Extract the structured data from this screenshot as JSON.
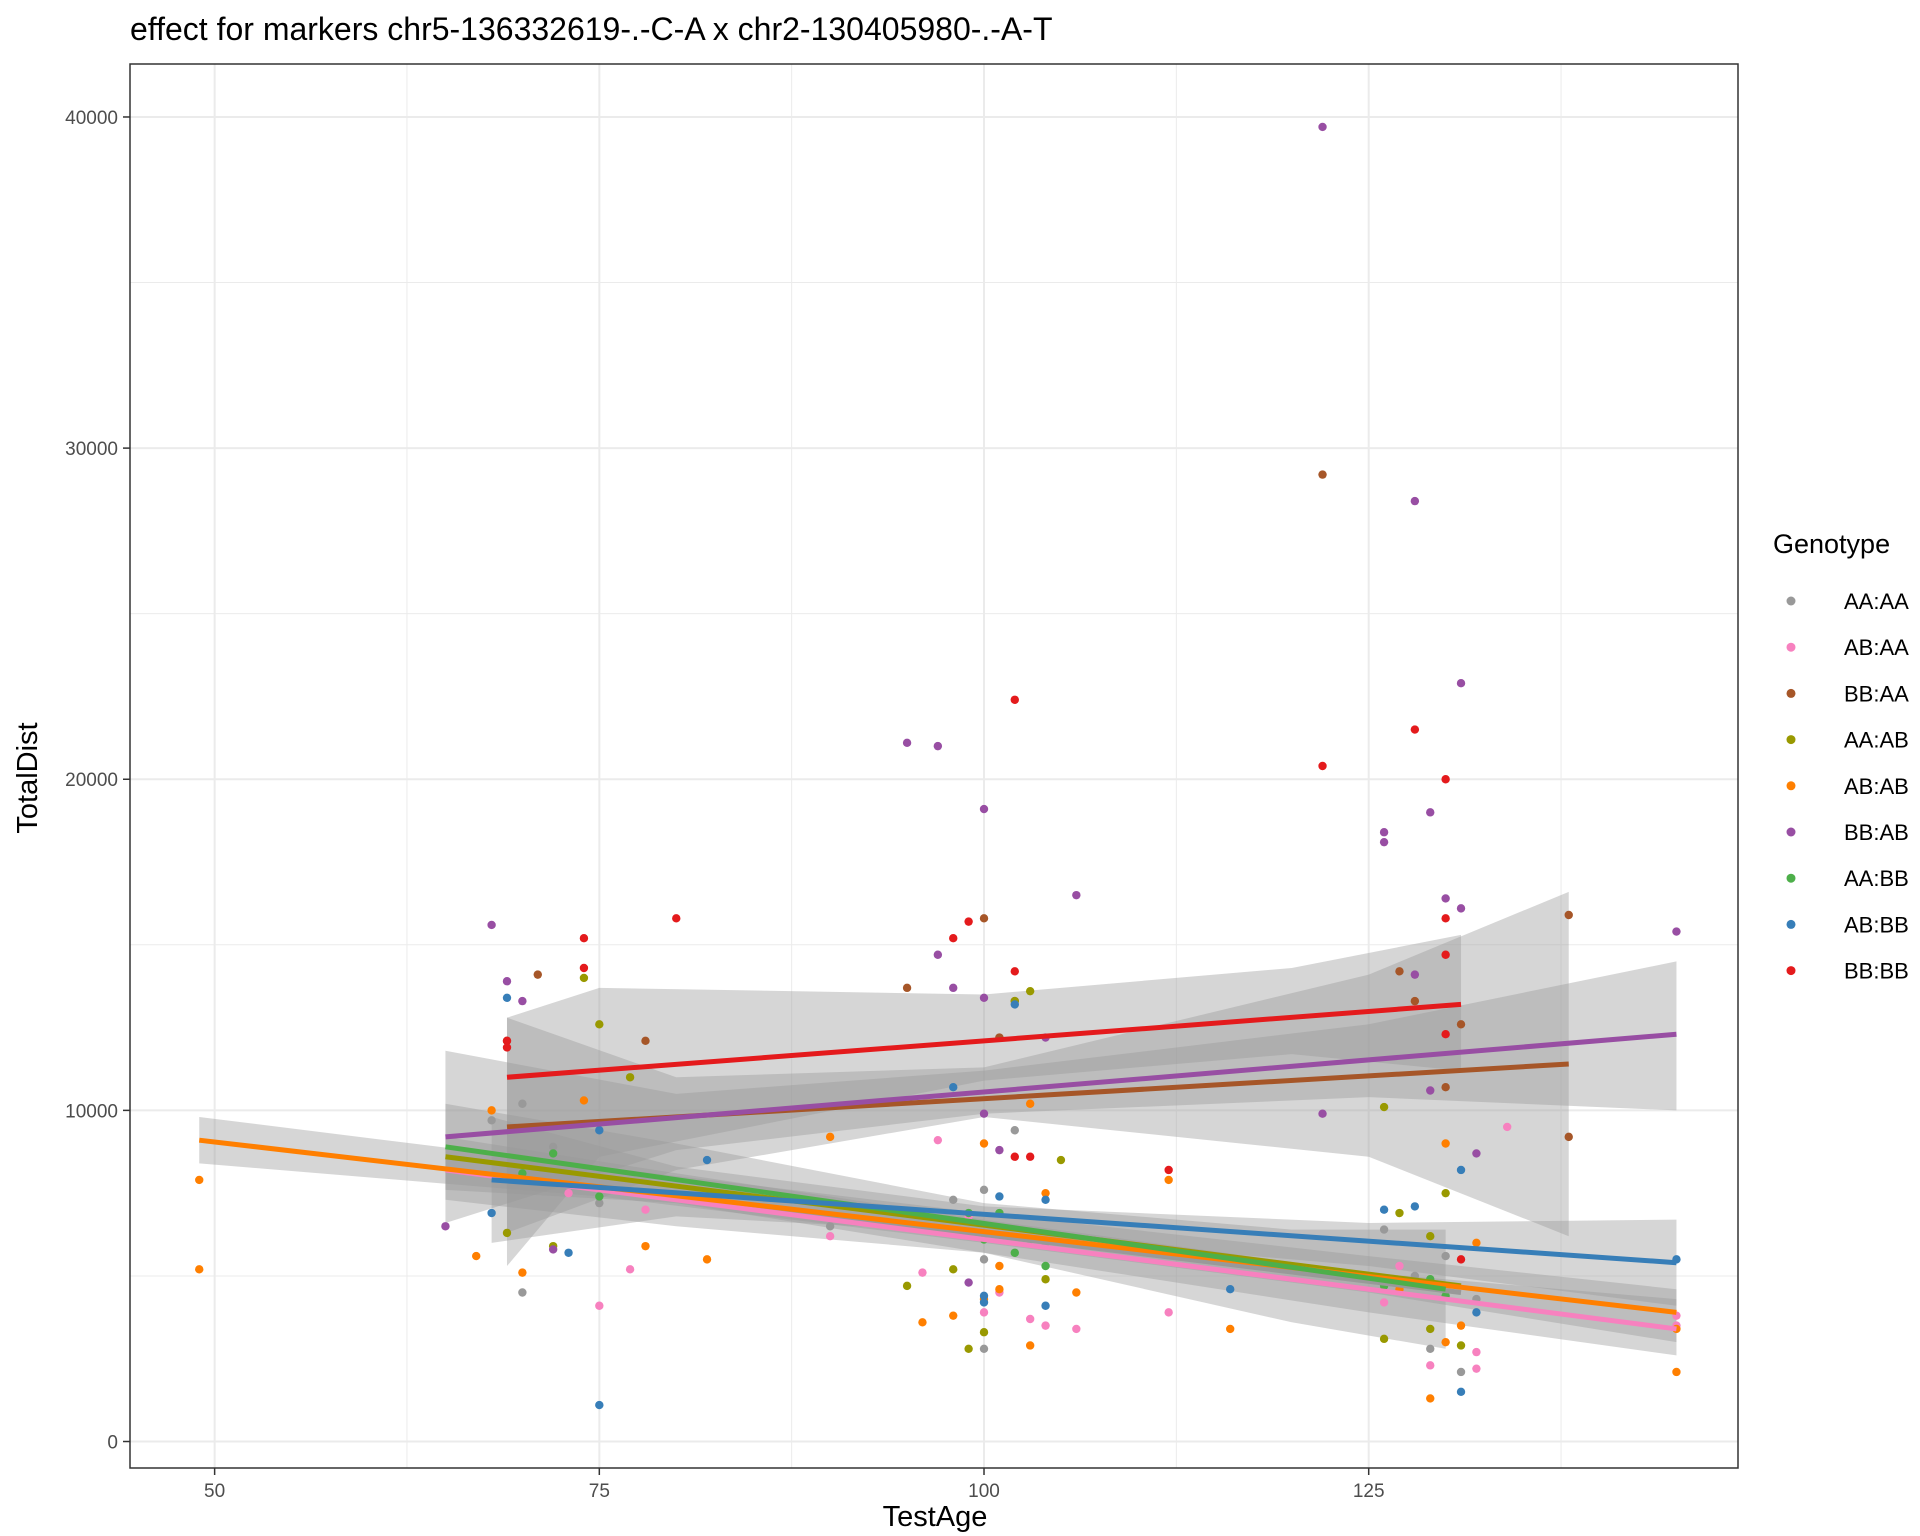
{
  "chart_data": {
    "type": "scatter",
    "title": "effect for markers chr5-136332619-.-C-A x chr2-130405980-.-A-T",
    "xlabel": "TestAge",
    "ylabel": "TotalDist",
    "xlim": [
      44.5,
      149
    ],
    "ylim": [
      -800,
      41600
    ],
    "x_ticks": [
      50,
      75,
      100,
      125
    ],
    "y_ticks": [
      0,
      10000,
      20000,
      30000,
      40000
    ],
    "x_tick_labels": [
      "50",
      "75",
      "100",
      "125"
    ],
    "y_tick_labels": [
      "0",
      "10000",
      "20000",
      "30000",
      "40000"
    ],
    "grid": true,
    "legend": {
      "title": "Genotype",
      "position": "right"
    },
    "series": [
      {
        "name": "AA:AA",
        "color": "#999999",
        "points": [
          [
            70,
            4500
          ],
          [
            75,
            7200
          ],
          [
            100,
            2800
          ],
          [
            100,
            7600
          ],
          [
            102,
            9400
          ],
          [
            103,
            6100
          ],
          [
            129,
            2800
          ],
          [
            131,
            2100
          ],
          [
            130,
            5600
          ],
          [
            126,
            6400
          ],
          [
            68,
            9700
          ],
          [
            70,
            10200
          ],
          [
            72,
            8900
          ],
          [
            90,
            6500
          ],
          [
            98,
            7300
          ],
          [
            100,
            5500
          ],
          [
            104,
            6000
          ],
          [
            128,
            5000
          ],
          [
            132,
            4300
          ]
        ],
        "fit": {
          "x": [
            69,
            131
          ],
          "y": [
            8000,
            4500
          ]
        }
      },
      {
        "name": "AB:AA",
        "color": "#F781BF",
        "points": [
          [
            75,
            4100
          ],
          [
            77,
            5200
          ],
          [
            96,
            5100
          ],
          [
            97,
            9100
          ],
          [
            100,
            3900
          ],
          [
            101,
            4500
          ],
          [
            103,
            3700
          ],
          [
            104,
            3500
          ],
          [
            106,
            3400
          ],
          [
            112,
            3900
          ],
          [
            129,
            2300
          ],
          [
            132,
            2200
          ],
          [
            132,
            2700
          ],
          [
            145,
            3800
          ],
          [
            134,
            9500
          ],
          [
            73,
            7500
          ],
          [
            78,
            7000
          ],
          [
            90,
            6200
          ],
          [
            99,
            6800
          ],
          [
            126,
            4200
          ],
          [
            127,
            5300
          ],
          [
            145,
            3500
          ]
        ],
        "fit": {
          "x": [
            65,
            145
          ],
          "y": [
            8200,
            3400
          ]
        }
      },
      {
        "name": "BB:AA",
        "color": "#A65628",
        "points": [
          [
            71,
            14100
          ],
          [
            95,
            13700
          ],
          [
            100,
            15800
          ],
          [
            102,
            13300
          ],
          [
            122,
            29200
          ],
          [
            138,
            15900
          ],
          [
            138,
            9200
          ],
          [
            127,
            14200
          ],
          [
            128,
            13300
          ],
          [
            131,
            12600
          ],
          [
            69,
            12100
          ],
          [
            78,
            12100
          ],
          [
            101,
            12200
          ],
          [
            130,
            10700
          ]
        ],
        "fit": {
          "x": [
            69,
            138
          ],
          "y": [
            9500,
            11400
          ]
        }
      },
      {
        "name": "AA:AB",
        "color": "#999900",
        "points": [
          [
            74,
            14000
          ],
          [
            75,
            12600
          ],
          [
            95,
            4700
          ],
          [
            99,
            2800
          ],
          [
            100,
            3300
          ],
          [
            102,
            13300
          ],
          [
            103,
            13600
          ],
          [
            105,
            8500
          ],
          [
            126,
            10100
          ],
          [
            130,
            7500
          ],
          [
            126,
            3100
          ],
          [
            129,
            3400
          ],
          [
            131,
            2900
          ],
          [
            69,
            6300
          ],
          [
            72,
            5900
          ],
          [
            77,
            11000
          ],
          [
            98,
            5200
          ],
          [
            104,
            4900
          ],
          [
            127,
            6900
          ],
          [
            129,
            6200
          ]
        ],
        "fit": {
          "x": [
            65,
            131
          ],
          "y": [
            8600,
            4700
          ]
        }
      },
      {
        "name": "AB:AB",
        "color": "#FF7F00",
        "points": [
          [
            49,
            7900
          ],
          [
            49,
            5200
          ],
          [
            67,
            5600
          ],
          [
            70,
            5100
          ],
          [
            82,
            5500
          ],
          [
            96,
            3600
          ],
          [
            98,
            3800
          ],
          [
            100,
            4300
          ],
          [
            101,
            4600
          ],
          [
            103,
            2900
          ],
          [
            104,
            7500
          ],
          [
            106,
            4500
          ],
          [
            116,
            3400
          ],
          [
            129,
            1300
          ],
          [
            130,
            3000
          ],
          [
            131,
            3500
          ],
          [
            132,
            6000
          ],
          [
            145,
            2100
          ],
          [
            145,
            3400
          ],
          [
            68,
            10000
          ],
          [
            74,
            10300
          ],
          [
            90,
            9200
          ],
          [
            100,
            9000
          ],
          [
            103,
            10200
          ],
          [
            112,
            7900
          ],
          [
            130,
            9000
          ],
          [
            78,
            5900
          ],
          [
            99,
            6300
          ],
          [
            101,
            5300
          ],
          [
            127,
            4600
          ]
        ],
        "fit": {
          "x": [
            49,
            145
          ],
          "y": [
            9100,
            3900
          ]
        }
      },
      {
        "name": "BB:AB",
        "color": "#984EA3",
        "points": [
          [
            68,
            15600
          ],
          [
            69,
            13900
          ],
          [
            70,
            13300
          ],
          [
            95,
            21100
          ],
          [
            97,
            21000
          ],
          [
            97,
            14700
          ],
          [
            98,
            13700
          ],
          [
            100,
            19100
          ],
          [
            100,
            13400
          ],
          [
            106,
            16500
          ],
          [
            122,
            39700
          ],
          [
            122,
            9900
          ],
          [
            126,
            18400
          ],
          [
            126,
            18100
          ],
          [
            128,
            28400
          ],
          [
            129,
            19000
          ],
          [
            130,
            16400
          ],
          [
            131,
            22900
          ],
          [
            131,
            16100
          ],
          [
            145,
            15400
          ],
          [
            65,
            6500
          ],
          [
            72,
            5800
          ],
          [
            99,
            4800
          ],
          [
            128,
            14100
          ],
          [
            129,
            10600
          ],
          [
            132,
            8700
          ],
          [
            100,
            9900
          ],
          [
            101,
            8800
          ],
          [
            104,
            12200
          ]
        ],
        "fit": {
          "x": [
            65,
            145
          ],
          "y": [
            9200,
            12300
          ]
        }
      },
      {
        "name": "AA:BB",
        "color": "#4DAF4A",
        "points": [
          [
            72,
            8700
          ],
          [
            75,
            7400
          ],
          [
            99,
            6900
          ],
          [
            100,
            6100
          ],
          [
            102,
            5700
          ],
          [
            104,
            5300
          ],
          [
            126,
            4700
          ],
          [
            129,
            4900
          ],
          [
            130,
            4400
          ],
          [
            70,
            8100
          ],
          [
            101,
            6900
          ]
        ],
        "fit": {
          "x": [
            65,
            130
          ],
          "y": [
            8900,
            4600
          ]
        }
      },
      {
        "name": "AB:BB",
        "color": "#377EB8",
        "points": [
          [
            69,
            13400
          ],
          [
            73,
            5700
          ],
          [
            75,
            1100
          ],
          [
            98,
            10700
          ],
          [
            100,
            4400
          ],
          [
            100,
            4200
          ],
          [
            102,
            13200
          ],
          [
            104,
            4100
          ],
          [
            104,
            7300
          ],
          [
            116,
            4600
          ],
          [
            126,
            7000
          ],
          [
            128,
            7100
          ],
          [
            131,
            8200
          ],
          [
            131,
            1500
          ],
          [
            132,
            3900
          ],
          [
            145,
            5500
          ],
          [
            68,
            6900
          ],
          [
            75,
            9400
          ],
          [
            82,
            8500
          ],
          [
            101,
            7400
          ]
        ],
        "fit": {
          "x": [
            68,
            145
          ],
          "y": [
            7900,
            5400
          ]
        }
      },
      {
        "name": "BB:BB",
        "color": "#E41A1C",
        "points": [
          [
            69,
            12100
          ],
          [
            69,
            11900
          ],
          [
            74,
            15200
          ],
          [
            74,
            14300
          ],
          [
            80,
            15800
          ],
          [
            98,
            15200
          ],
          [
            99,
            15700
          ],
          [
            102,
            14200
          ],
          [
            102,
            22400
          ],
          [
            112,
            8200
          ],
          [
            122,
            20400
          ],
          [
            128,
            21500
          ],
          [
            130,
            20000
          ],
          [
            130,
            15800
          ],
          [
            130,
            14700
          ],
          [
            130,
            12300
          ],
          [
            103,
            8600
          ],
          [
            131,
            5500
          ],
          [
            102,
            8600
          ]
        ],
        "fit": {
          "x": [
            69,
            131
          ],
          "y": [
            11000,
            13200
          ]
        }
      }
    ],
    "bands": [
      {
        "series": "AB:AB",
        "x": [
          49,
          75,
          100,
          125,
          145
        ],
        "upper": [
          9800,
          8300,
          6900,
          5600,
          4600
        ],
        "lower": [
          8400,
          7400,
          6000,
          4500,
          3000
        ]
      },
      {
        "series": "AB:AA",
        "x": [
          65,
          80,
          100,
          125,
          145
        ],
        "upper": [
          9200,
          8100,
          6700,
          5100,
          4300
        ],
        "lower": [
          7300,
          6500,
          5700,
          3900,
          2600
        ]
      },
      {
        "series": "AA:BB",
        "x": [
          65,
          80,
          100,
          120,
          130
        ],
        "upper": [
          10200,
          9000,
          7200,
          6400,
          6400
        ],
        "lower": [
          7600,
          7200,
          5700,
          3600,
          2800
        ]
      },
      {
        "series": "AB:BB",
        "x": [
          68,
          80,
          100,
          125,
          145
        ],
        "upper": [
          9800,
          8300,
          7100,
          6600,
          6700
        ],
        "lower": [
          6000,
          6800,
          6300,
          5300,
          4100
        ]
      },
      {
        "series": "BB:AA",
        "x": [
          69,
          80,
          100,
          125,
          138
        ],
        "upper": [
          12800,
          11000,
          11300,
          14100,
          16600
        ],
        "lower": [
          6300,
          8200,
          9800,
          8600,
          6200
        ]
      },
      {
        "series": "BB:AB",
        "x": [
          65,
          80,
          100,
          125,
          145
        ],
        "upper": [
          11800,
          10500,
          11200,
          12600,
          14500
        ],
        "lower": [
          6600,
          8800,
          9900,
          10400,
          10000
        ]
      },
      {
        "series": "BB:BB",
        "x": [
          69,
          75,
          100,
          120,
          131
        ],
        "upper": [
          12800,
          13700,
          13500,
          14300,
          15300
        ],
        "lower": [
          5300,
          8600,
          10900,
          11700,
          11200
        ]
      }
    ]
  }
}
